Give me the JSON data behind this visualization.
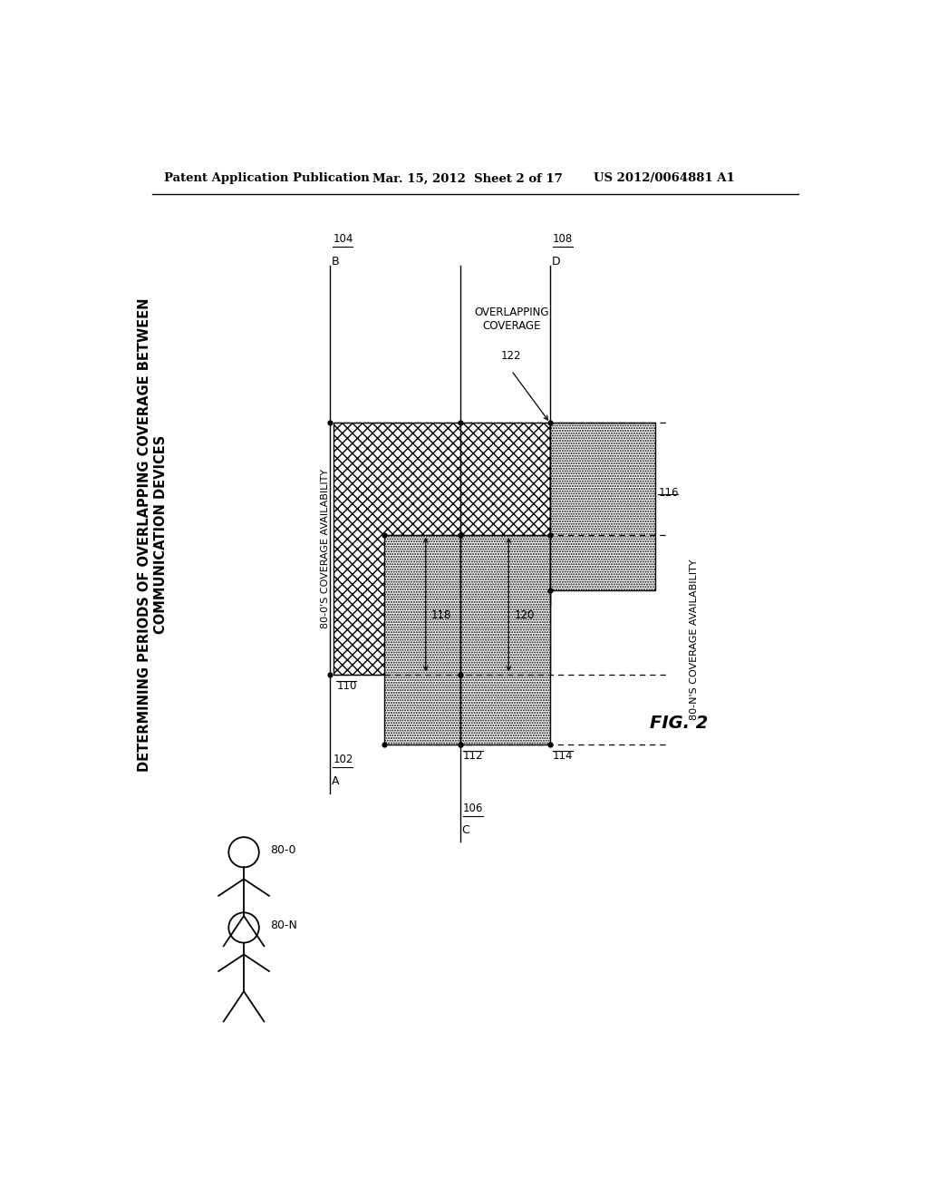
{
  "bg_color": "#ffffff",
  "header_text": "Patent Application Publication",
  "header_date": "Mar. 15, 2012  Sheet 2 of 17",
  "header_patent": "US 2012/0064881 A1",
  "title_lines": "DETERMINING PERIODS OF OVERLAPPING COVERAGE BETWEEN\nCOMMUNICATION DEVICES",
  "fig_label": "FIG. 2",
  "person_0_label": "80-0",
  "person_N_label": "80-N",
  "ref_102": "102",
  "ref_104": "104",
  "ref_106": "106",
  "ref_108": "108",
  "ref_110": "110",
  "ref_112": "112",
  "ref_114": "114",
  "ref_116": "116",
  "ref_118": "118",
  "ref_120": "120",
  "ref_122": "122",
  "label_A": "A",
  "label_B": "B",
  "label_C": "C",
  "label_D": "D",
  "label_80_0_coverage": "80-0'S COVERAGE AVAILABILITY",
  "label_80_N_coverage": "80-N'S COVERAGE AVAILABILITY",
  "label_overlapping": "OVERLAPPING\nCOVERAGE"
}
